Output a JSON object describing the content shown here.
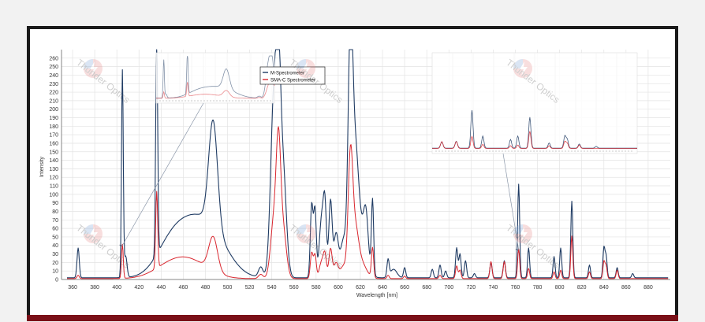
{
  "watermark": {
    "text": "Thunder Optics"
  },
  "chart_data": {
    "type": "line",
    "xlabel": "Wavelength [nm]",
    "ylabel": "Intensity",
    "xlim": [
      350,
      900
    ],
    "ylim": [
      0,
      270
    ],
    "xticks": [
      360,
      380,
      400,
      420,
      440,
      460,
      480,
      500,
      520,
      540,
      560,
      580,
      600,
      620,
      640,
      660,
      680,
      700,
      720,
      740,
      760,
      780,
      800,
      820,
      840,
      860,
      880
    ],
    "yticks": [
      0,
      10,
      20,
      30,
      40,
      50,
      60,
      70,
      80,
      90,
      100,
      110,
      120,
      130,
      140,
      150,
      160,
      170,
      180,
      190,
      200,
      210,
      220,
      230,
      240,
      250,
      260
    ],
    "grid": true,
    "legend_position": "top-center",
    "series": [
      {
        "name": "M-Spectrometer",
        "color": "#1f3b63",
        "baseline": 2,
        "peaks": [
          [
            365,
            35,
            1.0
          ],
          [
            405,
            243,
            0.8
          ],
          [
            408,
            25,
            1.2
          ],
          [
            436,
            260,
            0.9
          ],
          [
            450,
            42,
            14
          ],
          [
            470,
            40,
            14
          ],
          [
            487,
            125,
            4
          ],
          [
            488,
            40,
            15
          ],
          [
            530,
            12,
            2
          ],
          [
            542,
            215,
            3
          ],
          [
            546,
            160,
            2
          ],
          [
            550,
            130,
            3
          ],
          [
            576,
            85,
            1.2
          ],
          [
            579,
            80,
            1.2
          ],
          [
            585,
            70,
            2
          ],
          [
            588,
            75,
            1.4
          ],
          [
            593,
            90,
            1.5
          ],
          [
            598,
            50,
            2
          ],
          [
            605,
            45,
            3
          ],
          [
            611,
            255,
            2
          ],
          [
            615,
            120,
            3
          ],
          [
            620,
            55,
            5
          ],
          [
            625,
            50,
            2
          ],
          [
            631,
            88,
            1.0
          ],
          [
            645,
            20,
            1.0
          ],
          [
            650,
            10,
            3
          ],
          [
            660,
            12,
            1.0
          ],
          [
            685,
            10,
            1.0
          ],
          [
            692,
            15,
            1.0
          ],
          [
            697,
            8,
            1.0
          ],
          [
            707,
            35,
            1.0
          ],
          [
            710,
            28,
            1.0
          ],
          [
            715,
            20,
            1.0
          ],
          [
            723,
            5,
            1.0
          ],
          [
            738,
            18,
            1.0
          ],
          [
            750,
            20,
            1.0
          ],
          [
            763,
            110,
            0.9
          ],
          [
            772,
            35,
            0.9
          ],
          [
            795,
            25,
            0.9
          ],
          [
            801,
            35,
            0.9
          ],
          [
            811,
            90,
            0.9
          ],
          [
            827,
            15,
            0.9
          ],
          [
            840,
            35,
            0.9
          ],
          [
            842,
            25,
            0.9
          ],
          [
            852,
            12,
            0.9
          ],
          [
            866,
            5,
            0.9
          ]
        ]
      },
      {
        "name": "SMA-C Spectrometer",
        "color": "#d9262e",
        "baseline": 1,
        "peaks": [
          [
            365,
            4,
            1.0
          ],
          [
            405,
            40,
            0.8
          ],
          [
            436,
            90,
            0.9
          ],
          [
            450,
            16,
            16
          ],
          [
            470,
            15,
            16
          ],
          [
            487,
            40,
            4
          ],
          [
            530,
            5,
            2
          ],
          [
            542,
            70,
            3
          ],
          [
            546,
            125,
            2
          ],
          [
            550,
            60,
            3
          ],
          [
            576,
            30,
            1.2
          ],
          [
            579,
            28,
            1.2
          ],
          [
            585,
            20,
            2
          ],
          [
            588,
            25,
            1.4
          ],
          [
            593,
            35,
            1.5
          ],
          [
            598,
            18,
            2
          ],
          [
            605,
            15,
            3
          ],
          [
            611,
            130,
            2
          ],
          [
            615,
            50,
            3
          ],
          [
            620,
            20,
            5
          ],
          [
            631,
            35,
            1.0
          ],
          [
            645,
            4,
            1.0
          ],
          [
            660,
            3,
            1.0
          ],
          [
            692,
            4,
            1.0
          ],
          [
            707,
            15,
            1.0
          ],
          [
            710,
            10,
            1.0
          ],
          [
            738,
            20,
            1.0
          ],
          [
            750,
            20,
            1.0
          ],
          [
            763,
            35,
            0.9
          ],
          [
            772,
            12,
            0.9
          ],
          [
            795,
            8,
            0.9
          ],
          [
            801,
            10,
            0.9
          ],
          [
            811,
            50,
            0.9
          ],
          [
            827,
            8,
            0.9
          ],
          [
            840,
            20,
            0.9
          ],
          [
            842,
            15,
            0.9
          ],
          [
            852,
            10,
            0.9
          ]
        ]
      }
    ],
    "insets": [
      {
        "x_range": [
          395,
          550
        ],
        "y_range": [
          0,
          270
        ]
      },
      {
        "x_range": [
          730,
          900
        ],
        "y_range": [
          0,
          270
        ]
      }
    ]
  }
}
